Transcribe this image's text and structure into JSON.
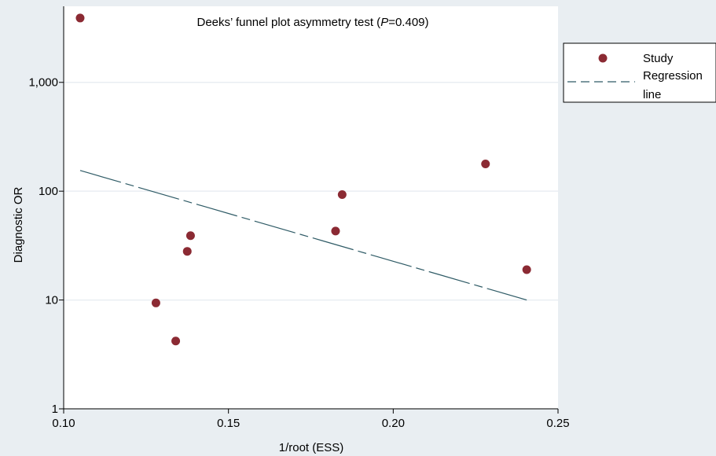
{
  "chart_data": {
    "type": "scatter",
    "title_prefix": "Deeks’ funnel plot asymmetry test (",
    "title_p": "P",
    "title_suffix": "=0.409)",
    "xlabel": "1/root (ESS)",
    "ylabel": "Diagnostic OR",
    "xlim": [
      0.1,
      0.25
    ],
    "ylim": [
      1,
      5000
    ],
    "yscale": "log",
    "x_ticks": [
      0.1,
      0.15,
      0.2,
      0.25
    ],
    "x_tick_labels": [
      "0.10",
      "0.15",
      "0.20",
      "0.25"
    ],
    "y_ticks": [
      1,
      10,
      100,
      1000
    ],
    "y_tick_labels": [
      "1",
      "10",
      "100",
      "1,000"
    ],
    "grid": true,
    "legend_position": "right",
    "series": [
      {
        "name": "Study",
        "kind": "points",
        "color": "#8b2a33",
        "x": [
          0.105,
          0.128,
          0.134,
          0.1375,
          0.1385,
          0.1825,
          0.1845,
          0.228,
          0.2405
        ],
        "y": [
          3900,
          9.4,
          4.2,
          28,
          39,
          43,
          93,
          178,
          19
        ]
      },
      {
        "name": "Regression line",
        "legend_lines": [
          "Regression",
          "line"
        ],
        "kind": "line",
        "color": "#2f5b66",
        "style": "dashed",
        "x": [
          0.105,
          0.2405
        ],
        "y": [
          155,
          10
        ]
      }
    ],
    "colors": {
      "background": "#e9eef2",
      "plot_background": "#ffffff",
      "grid": "#e9eef2",
      "axis": "#000000"
    }
  }
}
